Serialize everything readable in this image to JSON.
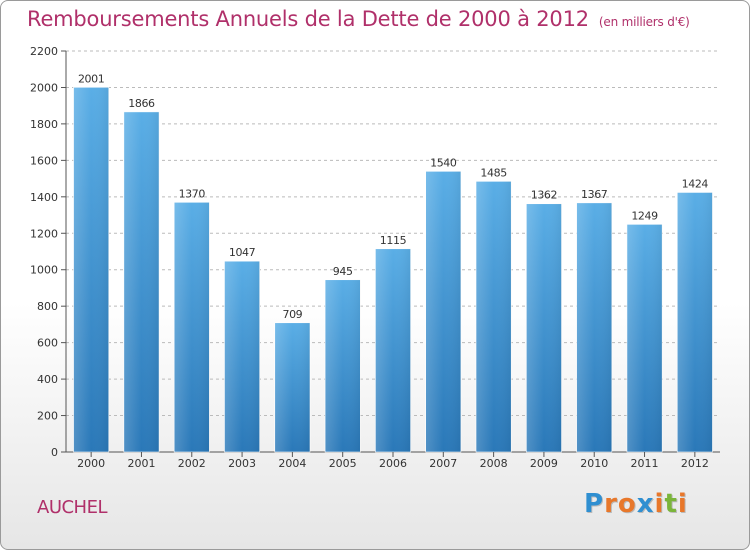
{
  "title": "Remboursements Annuels de la Dette de 2000 à 2012",
  "unit_label": "(en milliers d'€)",
  "commune": "AUCHEL",
  "logo": {
    "letters": [
      "P",
      "r",
      "o",
      "x",
      "i",
      "t",
      "i"
    ],
    "colors": [
      "#2f8fd1",
      "#e8772a",
      "#e8772a",
      "#2f8fd1",
      "#e8772a",
      "#7ab53a",
      "#e8772a"
    ]
  },
  "colors": {
    "title": "#b0306a",
    "bar_top": "#5aaee6",
    "bar_bottom": "#2a78b8",
    "grid": "#bbbbbb",
    "axis": "#555555"
  },
  "chart_data": {
    "type": "bar",
    "categories": [
      "2000",
      "2001",
      "2002",
      "2003",
      "2004",
      "2005",
      "2006",
      "2007",
      "2008",
      "2009",
      "2010",
      "2011",
      "2012"
    ],
    "values": [
      2001,
      1866,
      1370,
      1047,
      709,
      945,
      1115,
      1540,
      1485,
      1362,
      1367,
      1249,
      1424
    ],
    "data_labels": [
      "2001",
      "1866",
      "1370",
      "1047",
      "709",
      "945",
      "1115",
      "1540",
      "1485",
      "1362",
      "1367",
      "1249",
      "1424"
    ],
    "y_ticks": [
      "0",
      "200",
      "400",
      "600",
      "800",
      "1000",
      "1200",
      "1400",
      "1600",
      "1800",
      "2000",
      "2200"
    ],
    "ylim": [
      0,
      2200
    ],
    "grid": true,
    "grid_style": "dashed horizontal"
  }
}
